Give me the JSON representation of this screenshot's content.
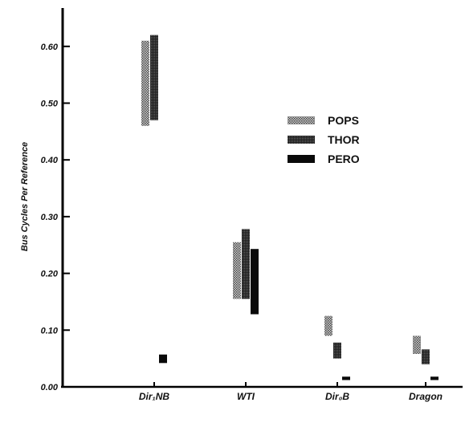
{
  "chart_data": {
    "type": "bar",
    "title": "",
    "xlabel": "",
    "ylabel": "Bus Cycles Per Reference",
    "ylim": [
      0,
      0.68
    ],
    "yticks": [
      0.0,
      0.1,
      0.2,
      0.3,
      0.4,
      0.5,
      0.6
    ],
    "ytick_labels": [
      "0.00",
      "0.10",
      "0.20",
      "0.30",
      "0.40",
      "0.50",
      "0.60"
    ],
    "categories": [
      "Dir₁NB",
      "WTI",
      "Dir₀B",
      "Dragon"
    ],
    "grid": false,
    "legend_position": "right",
    "series": [
      {
        "name": "POPS",
        "pattern": "stippled",
        "color": "#8a8a8a",
        "ranges": [
          [
            0.46,
            0.61
          ],
          [
            0.155,
            0.255
          ],
          [
            0.09,
            0.125
          ],
          [
            0.058,
            0.09
          ]
        ]
      },
      {
        "name": "THOR",
        "pattern": "dense",
        "color": "#1a1a1a",
        "ranges": [
          [
            0.47,
            0.62
          ],
          [
            0.155,
            0.278
          ],
          [
            0.05,
            0.078
          ],
          [
            0.04,
            0.066
          ]
        ]
      },
      {
        "name": "PERO",
        "pattern": "solid",
        "color": "#0a0a0a",
        "ranges": [
          [
            0.042,
            0.057
          ],
          [
            0.128,
            0.243
          ],
          [
            0.012,
            0.018
          ],
          [
            0.012,
            0.018
          ]
        ]
      }
    ]
  }
}
